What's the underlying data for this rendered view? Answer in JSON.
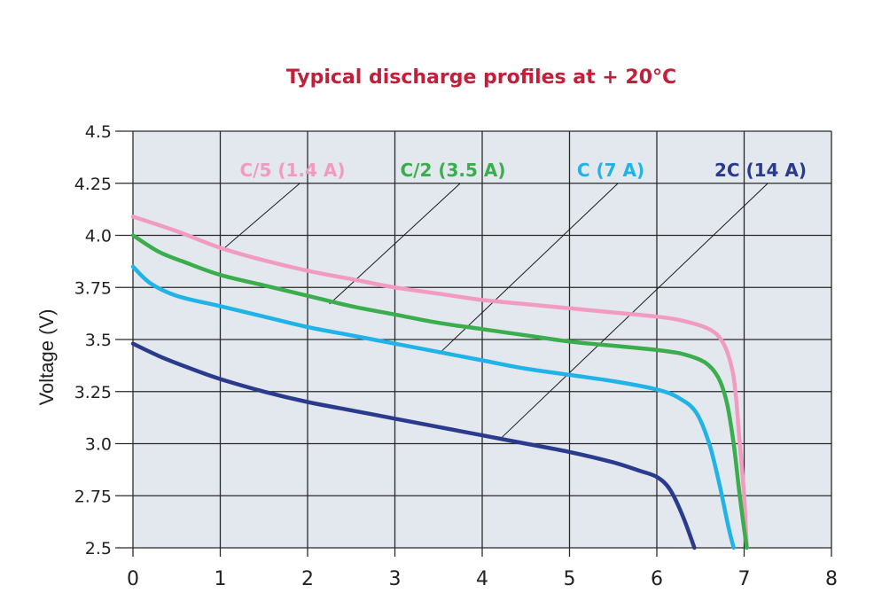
{
  "chart_data": {
    "type": "line",
    "title": "Typical discharge profiles at + 20°C",
    "xlabel": "",
    "ylabel": "Voltage (V)",
    "xlim": [
      0,
      8
    ],
    "ylim": [
      2.5,
      4.5
    ],
    "x_ticks": [
      "0",
      "1",
      "2",
      "3",
      "4",
      "5",
      "6",
      "7",
      "8"
    ],
    "y_ticks": [
      "2.5",
      "2.75",
      "3.0",
      "3.25",
      "3.5",
      "3.75",
      "4.0",
      "4.25",
      "4.5"
    ],
    "grid": true,
    "series": [
      {
        "name": "C/5 (1.4 A)",
        "color": "#f29bc2",
        "points": [
          [
            0,
            4.09
          ],
          [
            0.5,
            4.02
          ],
          [
            1,
            3.94
          ],
          [
            1.5,
            3.88
          ],
          [
            2,
            3.83
          ],
          [
            2.5,
            3.79
          ],
          [
            3,
            3.75
          ],
          [
            3.5,
            3.72
          ],
          [
            4,
            3.69
          ],
          [
            4.5,
            3.67
          ],
          [
            5,
            3.65
          ],
          [
            5.5,
            3.63
          ],
          [
            6,
            3.61
          ],
          [
            6.3,
            3.59
          ],
          [
            6.6,
            3.55
          ],
          [
            6.75,
            3.49
          ],
          [
            6.85,
            3.38
          ],
          [
            6.9,
            3.25
          ],
          [
            6.95,
            3.0
          ],
          [
            7.0,
            2.75
          ],
          [
            7.03,
            2.5
          ]
        ]
      },
      {
        "name": "C/2 (3.5 A)",
        "color": "#3aad4c",
        "points": [
          [
            0,
            4.0
          ],
          [
            0.3,
            3.92
          ],
          [
            0.6,
            3.87
          ],
          [
            1,
            3.81
          ],
          [
            1.5,
            3.76
          ],
          [
            2,
            3.71
          ],
          [
            2.5,
            3.66
          ],
          [
            3,
            3.62
          ],
          [
            3.5,
            3.58
          ],
          [
            4,
            3.55
          ],
          [
            4.5,
            3.52
          ],
          [
            5,
            3.49
          ],
          [
            5.5,
            3.47
          ],
          [
            6,
            3.45
          ],
          [
            6.3,
            3.43
          ],
          [
            6.55,
            3.39
          ],
          [
            6.7,
            3.32
          ],
          [
            6.8,
            3.2
          ],
          [
            6.88,
            3.0
          ],
          [
            6.95,
            2.75
          ],
          [
            7.03,
            2.5
          ]
        ]
      },
      {
        "name": "C (7 A)",
        "color": "#1fb3e8",
        "points": [
          [
            0,
            3.85
          ],
          [
            0.2,
            3.77
          ],
          [
            0.5,
            3.71
          ],
          [
            1,
            3.66
          ],
          [
            1.5,
            3.61
          ],
          [
            2,
            3.56
          ],
          [
            2.5,
            3.52
          ],
          [
            3,
            3.48
          ],
          [
            3.5,
            3.44
          ],
          [
            4,
            3.4
          ],
          [
            4.5,
            3.36
          ],
          [
            5,
            3.33
          ],
          [
            5.5,
            3.3
          ],
          [
            6,
            3.26
          ],
          [
            6.25,
            3.22
          ],
          [
            6.45,
            3.15
          ],
          [
            6.6,
            3.0
          ],
          [
            6.72,
            2.8
          ],
          [
            6.82,
            2.6
          ],
          [
            6.88,
            2.5
          ]
        ]
      },
      {
        "name": "2C (14 A)",
        "color": "#2a3a8c",
        "points": [
          [
            0,
            3.48
          ],
          [
            0.3,
            3.42
          ],
          [
            0.6,
            3.37
          ],
          [
            1,
            3.31
          ],
          [
            1.5,
            3.25
          ],
          [
            2,
            3.2
          ],
          [
            2.5,
            3.16
          ],
          [
            3,
            3.12
          ],
          [
            3.5,
            3.08
          ],
          [
            4,
            3.04
          ],
          [
            4.5,
            3.0
          ],
          [
            5,
            2.96
          ],
          [
            5.5,
            2.91
          ],
          [
            5.8,
            2.87
          ],
          [
            6,
            2.84
          ],
          [
            6.15,
            2.78
          ],
          [
            6.3,
            2.65
          ],
          [
            6.43,
            2.5
          ]
        ]
      }
    ],
    "annotations": [
      {
        "label": "C/5 (1.4 A)",
        "target": [
          1.05,
          3.94
        ]
      },
      {
        "label": "C/2 (3.5 A)",
        "target": [
          2.25,
          3.67
        ]
      },
      {
        "label": "C (7 A)",
        "target": [
          3.5,
          3.43
        ]
      },
      {
        "label": "2C (14 A)",
        "target": [
          4.2,
          3.02
        ]
      }
    ]
  }
}
